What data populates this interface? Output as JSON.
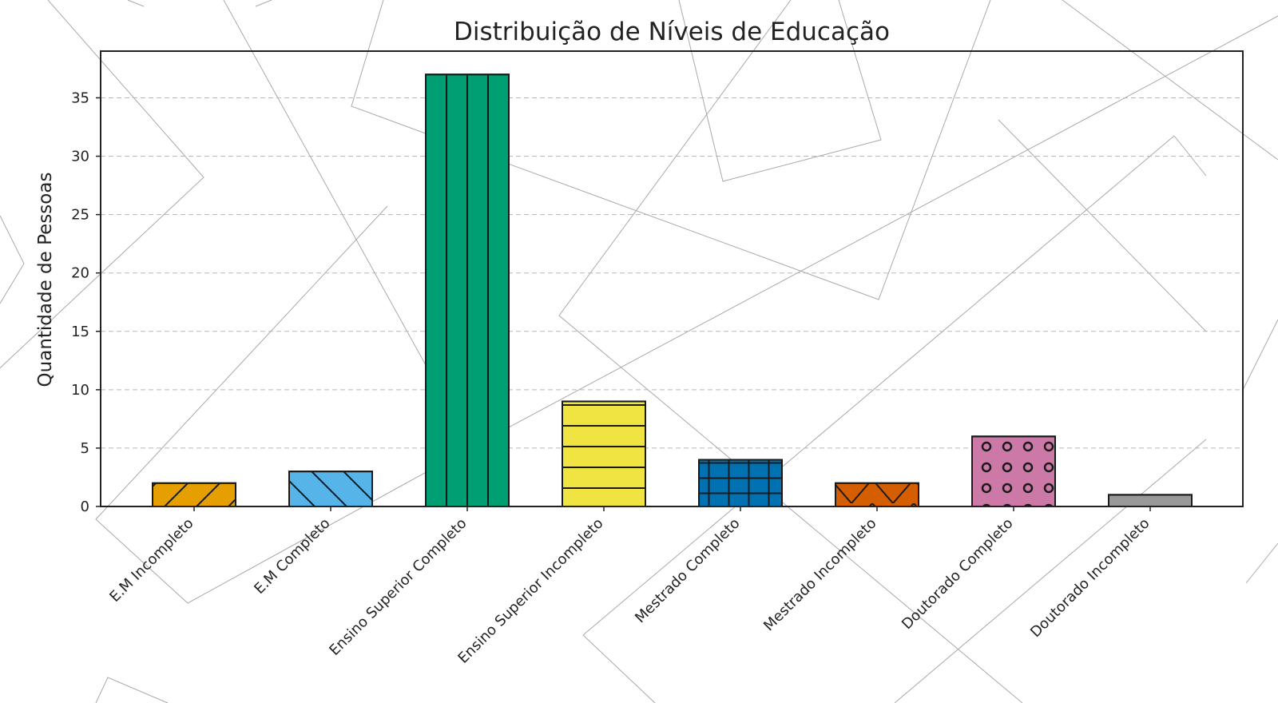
{
  "chart_data": {
    "type": "bar",
    "title": "Distribuição de Níveis de Educação",
    "xlabel": "",
    "ylabel": "Quantidade de Pessoas",
    "categories": [
      "E.M Incompleto",
      "E.M Completo",
      "Ensino Superior Completo",
      "Ensino Superior Incompleto",
      "Mestrado Completo",
      "Mestrado Incompleto",
      "Doutorado Completo",
      "Doutorado Incompleto"
    ],
    "values": [
      2,
      3,
      37,
      9,
      4,
      2,
      6,
      1
    ],
    "colors": [
      "#E69F00",
      "#56B4E9",
      "#009E73",
      "#F0E442",
      "#0072B2",
      "#D55E00",
      "#CC79A7",
      "#999999"
    ],
    "hatches": [
      "diagonal-forward",
      "diagonal-back",
      "vertical",
      "horizontal",
      "grid",
      "cross-diagonal",
      "circles",
      "dots"
    ],
    "ylim": [
      0,
      39
    ],
    "yticks": [
      0,
      5,
      10,
      15,
      20,
      25,
      30,
      35
    ],
    "grid": "y-dashed",
    "legend": "none"
  }
}
